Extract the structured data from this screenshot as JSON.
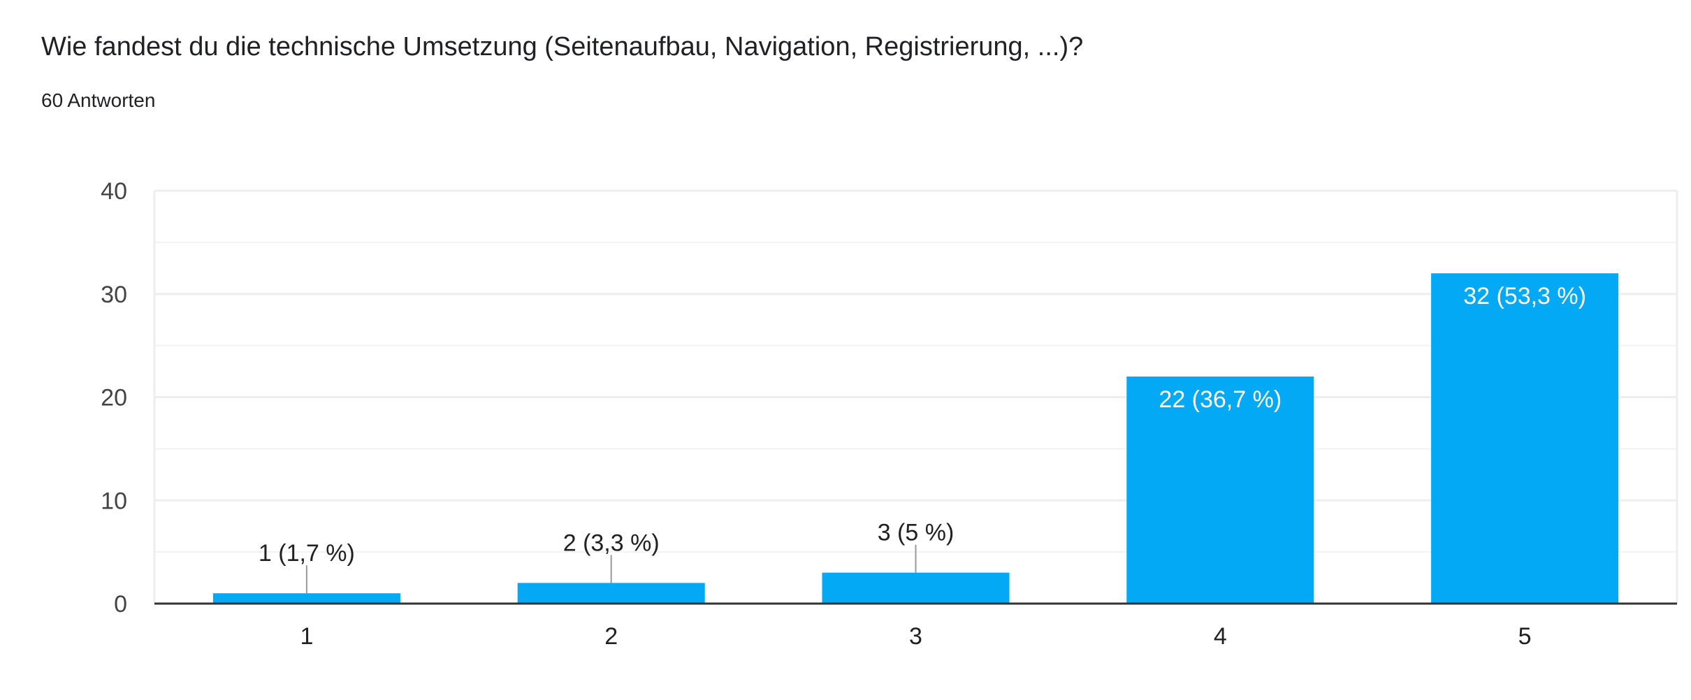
{
  "header": {
    "title": "Wie fandest du die technische Umsetzung (Seitenaufbau, Navigation, Registrierung, ...)?",
    "subtitle": "60 Antworten"
  },
  "colors": {
    "bar": "#03a9f4",
    "text": "#212121",
    "axis": "#333333",
    "grid": "#eeeeee",
    "leader": "#999999"
  },
  "chart_data": {
    "type": "bar",
    "title": "Wie fandest du die technische Umsetzung (Seitenaufbau, Navigation, Registrierung, ...)?",
    "xlabel": "",
    "ylabel": "",
    "categories": [
      "1",
      "2",
      "3",
      "4",
      "5"
    ],
    "values": [
      1,
      2,
      3,
      22,
      32
    ],
    "data_labels": [
      "1 (1,7 %)",
      "2 (3,3 %)",
      "3 (5 %)",
      "22 (36,7 %)",
      "32 (53,3 %)"
    ],
    "ylim": [
      0,
      40
    ],
    "yticks": [
      0,
      10,
      20,
      30,
      40
    ],
    "grid": true,
    "legend": "none"
  }
}
